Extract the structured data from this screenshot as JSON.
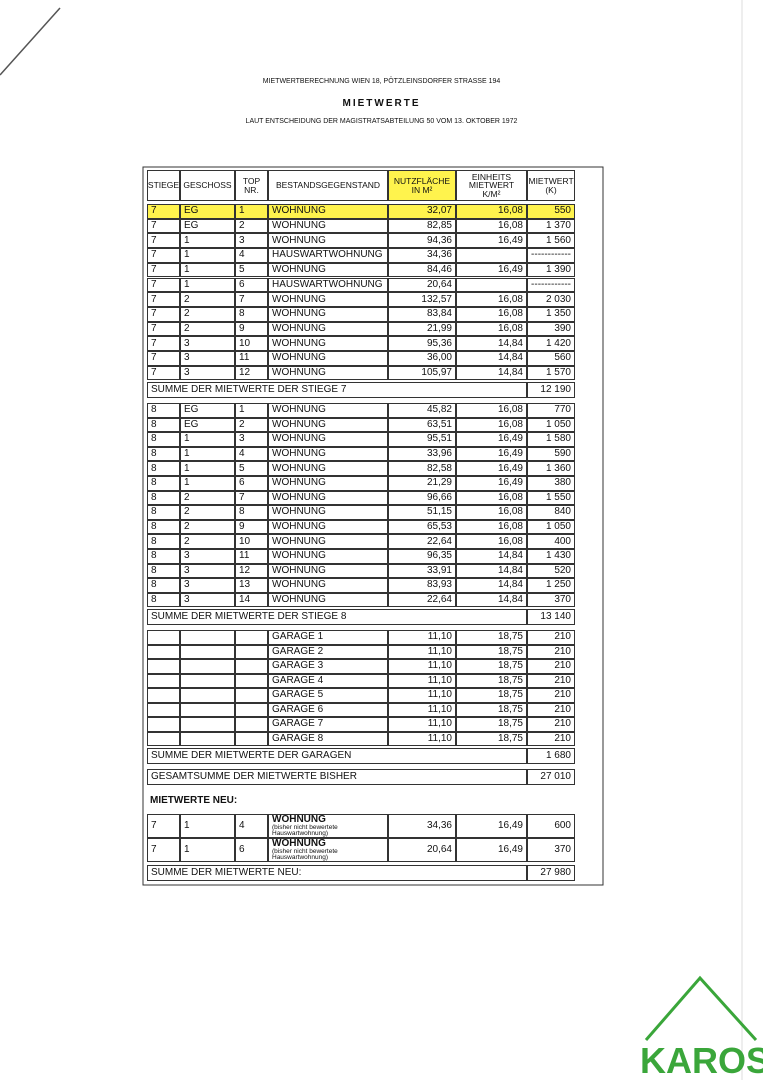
{
  "header": {
    "line": "MIETWERTBERECHNUNG WIEN 18, PÖTZLEINSDORFER STRASSE 194",
    "title": "MIETWERTE",
    "subtitle": "LAUT ENTSCHEIDUNG DER MAGISTRATSABTEILUNG 50 VOM 13. OKTOBER 1972"
  },
  "table": {
    "columns": [
      "STIEGE",
      "GESCHOSS",
      "TOP NR.",
      "BESTANDSGEGENSTAND",
      "NUTZFLÄCHE IN M²",
      "EINHEITS MIETWERT K/M²",
      "MIETWERT (K)"
    ],
    "groups": [
      {
        "rows": [
          [
            "7",
            "EG",
            "1",
            "WOHNUNG",
            "32,07",
            "16,08",
            "550"
          ],
          [
            "7",
            "EG",
            "2",
            "WOHNUNG",
            "82,85",
            "16,08",
            "1 370"
          ],
          [
            "7",
            "1",
            "3",
            "WOHNUNG",
            "94,36",
            "16,49",
            "1 560"
          ],
          [
            "7",
            "1",
            "4",
            "HAUSWARTWOHNUNG",
            "34,36",
            null,
            "------------"
          ],
          [
            "7",
            "1",
            "5",
            "WOHNUNG",
            "84,46",
            "16,49",
            "1 390"
          ],
          [
            "7",
            "1",
            "6",
            "HAUSWARTWOHNUNG",
            "20,64",
            null,
            "------------"
          ],
          [
            "7",
            "2",
            "7",
            "WOHNUNG",
            "132,57",
            "16,08",
            "2 030"
          ],
          [
            "7",
            "2",
            "8",
            "WOHNUNG",
            "83,84",
            "16,08",
            "1 350"
          ],
          [
            "7",
            "2",
            "9",
            "WOHNUNG",
            "21,99",
            "16,08",
            "390"
          ],
          [
            "7",
            "3",
            "10",
            "WOHNUNG",
            "95,36",
            "14,84",
            "1 420"
          ],
          [
            "7",
            "3",
            "11",
            "WOHNUNG",
            "36,00",
            "14,84",
            "560"
          ],
          [
            "7",
            "3",
            "12",
            "WOHNUNG",
            "105,97",
            "14,84",
            "1 570"
          ]
        ],
        "sum_label": "SUMME DER MIETWERTE DER STIEGE 7",
        "sum": "12 190"
      },
      {
        "rows": [
          [
            "8",
            "EG",
            "1",
            "WOHNUNG",
            "45,82",
            "16,08",
            "770"
          ],
          [
            "8",
            "EG",
            "2",
            "WOHNUNG",
            "63,51",
            "16,08",
            "1 050"
          ],
          [
            "8",
            "1",
            "3",
            "WOHNUNG",
            "95,51",
            "16,49",
            "1 580"
          ],
          [
            "8",
            "1",
            "4",
            "WOHNUNG",
            "33,96",
            "16,49",
            "590"
          ],
          [
            "8",
            "1",
            "5",
            "WOHNUNG",
            "82,58",
            "16,49",
            "1 360"
          ],
          [
            "8",
            "1",
            "6",
            "WOHNUNG",
            "21,29",
            "16,49",
            "380"
          ],
          [
            "8",
            "2",
            "7",
            "WOHNUNG",
            "96,66",
            "16,08",
            "1 550"
          ],
          [
            "8",
            "2",
            "8",
            "WOHNUNG",
            "51,15",
            "16,08",
            "840"
          ],
          [
            "8",
            "2",
            "9",
            "WOHNUNG",
            "65,53",
            "16,08",
            "1 050"
          ],
          [
            "8",
            "2",
            "10",
            "WOHNUNG",
            "22,64",
            "16,08",
            "400"
          ],
          [
            "8",
            "3",
            "11",
            "WOHNUNG",
            "96,35",
            "14,84",
            "1 430"
          ],
          [
            "8",
            "3",
            "12",
            "WOHNUNG",
            "33,91",
            "14,84",
            "520"
          ],
          [
            "8",
            "3",
            "13",
            "WOHNUNG",
            "83,93",
            "14,84",
            "1 250"
          ],
          [
            "8",
            "3",
            "14",
            "WOHNUNG",
            "22,64",
            "14,84",
            "370"
          ]
        ],
        "sum_label": "SUMME DER MIETWERTE DER STIEGE 8",
        "sum": "13 140"
      },
      {
        "rows": [
          [
            null,
            null,
            null,
            "GARAGE 1",
            "11,10",
            "18,75",
            "210"
          ],
          [
            null,
            null,
            null,
            "GARAGE 2",
            "11,10",
            "18,75",
            "210"
          ],
          [
            null,
            null,
            null,
            "GARAGE 3",
            "11,10",
            "18,75",
            "210"
          ],
          [
            null,
            null,
            null,
            "GARAGE 4",
            "11,10",
            "18,75",
            "210"
          ],
          [
            null,
            null,
            null,
            "GARAGE 5",
            "11,10",
            "18,75",
            "210"
          ],
          [
            null,
            null,
            null,
            "GARAGE 6",
            "11,10",
            "18,75",
            "210"
          ],
          [
            null,
            null,
            null,
            "GARAGE 7",
            "11,10",
            "18,75",
            "210"
          ],
          [
            null,
            null,
            null,
            "GARAGE 8",
            "11,10",
            "18,75",
            "210"
          ]
        ],
        "sum_label": "SUMME DER MIETWERTE DER GARAGEN",
        "sum": "1 680"
      }
    ],
    "total": {
      "label": "GESAMTSUMME DER MIETWERTE BISHER",
      "value": "27 010"
    },
    "new": {
      "heading": "MIETWERTE NEU:",
      "rows": [
        {
          "cells": [
            "7",
            "1",
            "4",
            "WOHNUNG",
            "34,36",
            "16,49",
            "600"
          ],
          "note": "(bisher nicht bewertete Hauswartwohnung)"
        },
        {
          "cells": [
            "7",
            "1",
            "6",
            "WOHNUNG",
            "20,64",
            "16,49",
            "370"
          ],
          "note": "(bisher nicht bewertete Hauswartwohnung)"
        }
      ],
      "sum_label": "SUMME DER MIETWERTE NEU:",
      "sum": "27 980"
    }
  },
  "logo": "KAROS"
}
